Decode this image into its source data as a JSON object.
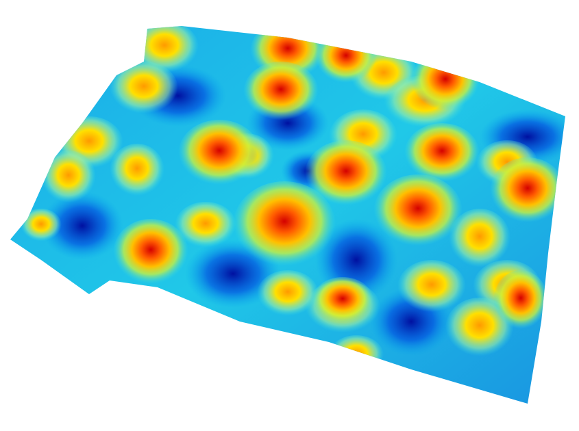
{
  "figure": {
    "kind": "3D surface height map",
    "colormap": "jet",
    "colormap_stops": [
      "#00008f",
      "#0040ff",
      "#00c8ff",
      "#40ffd0",
      "#ffff00",
      "#ff8000",
      "#e00000"
    ],
    "background_color": "#ffffff"
  }
}
